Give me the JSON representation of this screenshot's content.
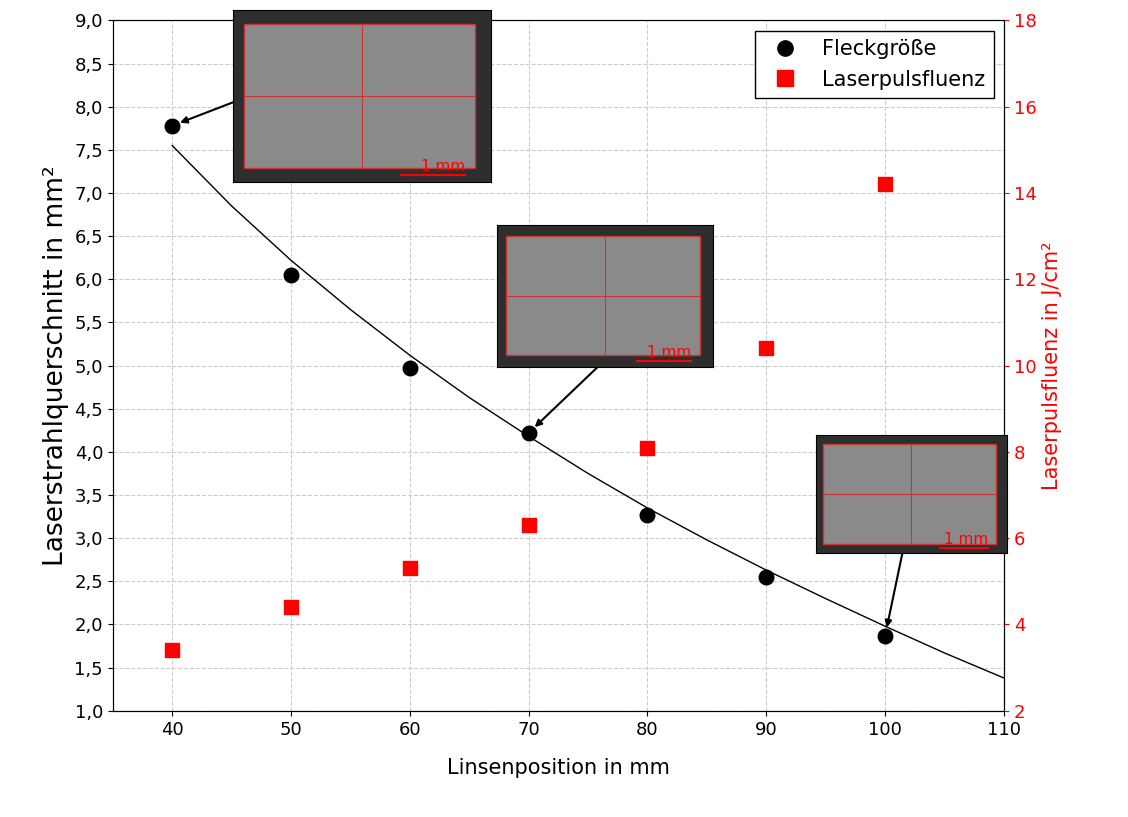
{
  "chart_data": {
    "type": "scatter",
    "xlabel": "Linsenposition in mm",
    "ylabel": "Laserstrahlquerschnitt in mm²",
    "y2label": "Laserpulsfluenz in J/cm²",
    "xlim": [
      35,
      110
    ],
    "xticks": [
      40,
      50,
      60,
      70,
      80,
      90,
      100,
      110
    ],
    "ylim": [
      1.0,
      9.0
    ],
    "yticks": [
      {
        "value": 1.0,
        "label": "1,0"
      },
      {
        "value": 1.5,
        "label": "1,5"
      },
      {
        "value": 2.0,
        "label": "2,0"
      },
      {
        "value": 2.5,
        "label": "2,5"
      },
      {
        "value": 3.0,
        "label": "3,0"
      },
      {
        "value": 3.5,
        "label": "3,5"
      },
      {
        "value": 4.0,
        "label": "4,0"
      },
      {
        "value": 4.5,
        "label": "4,5"
      },
      {
        "value": 5.0,
        "label": "5,0"
      },
      {
        "value": 5.5,
        "label": "5,5"
      },
      {
        "value": 6.0,
        "label": "6,0"
      },
      {
        "value": 6.5,
        "label": "6,5"
      },
      {
        "value": 7.0,
        "label": "7,0"
      },
      {
        "value": 7.5,
        "label": "7,5"
      },
      {
        "value": 8.0,
        "label": "8,0"
      },
      {
        "value": 8.5,
        "label": "8,5"
      },
      {
        "value": 9.0,
        "label": "9,0"
      }
    ],
    "y2lim": [
      2,
      18
    ],
    "y2ticks": [
      2,
      4,
      6,
      8,
      10,
      12,
      14,
      16,
      18
    ],
    "grid": true,
    "legend": "upper right",
    "series": [
      {
        "name": "Fleckgröße",
        "type": "scatter",
        "color": "#000000",
        "marker": "circle",
        "x": [
          40,
          50,
          60,
          70,
          80,
          90,
          100
        ],
        "values": [
          7.78,
          6.05,
          4.97,
          4.22,
          3.27,
          2.55,
          1.87
        ]
      },
      {
        "name": "Laserpulsfluenz",
        "type": "scatter",
        "color": "#ff0000",
        "marker": "square",
        "axis": "y2",
        "x": [
          40,
          50,
          60,
          70,
          80,
          90,
          100
        ],
        "values": [
          3.4,
          4.4,
          5.3,
          6.3,
          8.1,
          10.4,
          14.2
        ]
      },
      {
        "type": "line",
        "color": "#000000",
        "line_style": "solid",
        "x": [
          40,
          45,
          50,
          55,
          60,
          65,
          70,
          75,
          80,
          85,
          90,
          95,
          100,
          105,
          110
        ],
        "values": [
          7.55,
          6.85,
          6.22,
          5.65,
          5.12,
          4.63,
          4.18,
          3.75,
          3.35,
          2.98,
          2.63,
          2.3,
          1.98,
          1.67,
          1.38
        ]
      }
    ],
    "insets": [
      {
        "points_to": 40,
        "scale_label": "1 mm"
      },
      {
        "points_to": 70,
        "scale_label": "1 mm"
      },
      {
        "points_to": 100,
        "scale_label": "1 mm"
      }
    ]
  }
}
